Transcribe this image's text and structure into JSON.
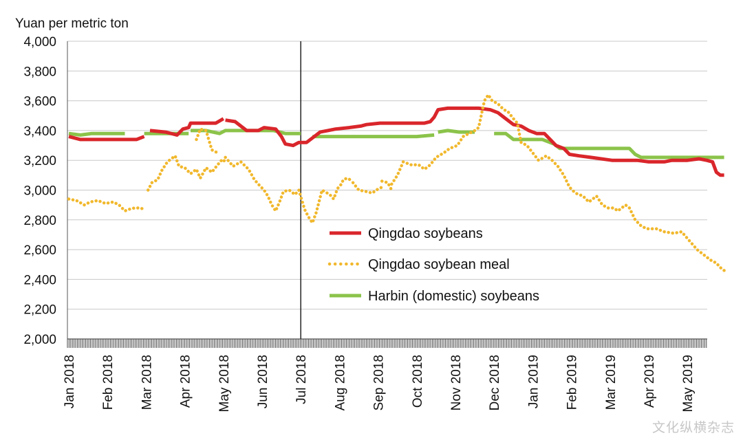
{
  "chart_data": {
    "type": "line",
    "title": "",
    "ylabel": "Yuan per metric ton",
    "xlabel": "",
    "ylim": [
      2000,
      4000
    ],
    "yticks": [
      2000,
      2200,
      2400,
      2600,
      2800,
      3000,
      3200,
      3400,
      3600,
      3800,
      4000
    ],
    "ytick_labels": [
      "2,000",
      "2,200",
      "2,400",
      "2,600",
      "2,800",
      "3,000",
      "3,200",
      "3,400",
      "3,600",
      "3,800",
      "4,000"
    ],
    "x_unit": "months since Jan 2018",
    "xlim": [
      0,
      16.95
    ],
    "month_labels": [
      "Jan 2018",
      "Feb 2018",
      "Mar 2018",
      "Apr 2018",
      "May 2018",
      "Jun 2018",
      "Jul 2018",
      "Aug 2018",
      "Sep 2018",
      "Oct 2018",
      "Nov 2018",
      "Dec 2018",
      "Jan 2019",
      "Feb 2019",
      "Mar 2019",
      "Apr 2019",
      "May 2019"
    ],
    "vertical_line_at": 6,
    "grid": true,
    "legend_position": "center-right",
    "series": [
      {
        "name": "Qingdao soybeans",
        "color": "#d9262b",
        "style": "solid",
        "gaps_after_index": [
          5,
          14
        ],
        "points": [
          [
            0.0,
            3360
          ],
          [
            0.3,
            3340
          ],
          [
            1.0,
            3340
          ],
          [
            1.45,
            3340
          ],
          [
            1.75,
            3340
          ],
          [
            1.95,
            3360
          ],
          [
            2.1,
            3400
          ],
          [
            2.5,
            3390
          ],
          [
            2.8,
            3370
          ],
          [
            2.95,
            3410
          ],
          [
            3.1,
            3420
          ],
          [
            3.15,
            3450
          ],
          [
            3.5,
            3450
          ],
          [
            3.8,
            3450
          ],
          [
            4.0,
            3480
          ],
          [
            4.05,
            3470
          ],
          [
            4.3,
            3460
          ],
          [
            4.45,
            3430
          ],
          [
            4.6,
            3400
          ],
          [
            4.9,
            3400
          ],
          [
            5.05,
            3420
          ],
          [
            5.35,
            3410
          ],
          [
            5.5,
            3360
          ],
          [
            5.6,
            3310
          ],
          [
            5.8,
            3300
          ],
          [
            5.95,
            3320
          ],
          [
            6.15,
            3320
          ],
          [
            6.3,
            3350
          ],
          [
            6.5,
            3390
          ],
          [
            6.7,
            3400
          ],
          [
            6.9,
            3410
          ],
          [
            7.25,
            3420
          ],
          [
            7.55,
            3430
          ],
          [
            7.7,
            3440
          ],
          [
            8.05,
            3450
          ],
          [
            8.4,
            3450
          ],
          [
            8.7,
            3450
          ],
          [
            9.0,
            3450
          ],
          [
            9.2,
            3450
          ],
          [
            9.35,
            3460
          ],
          [
            9.45,
            3490
          ],
          [
            9.55,
            3540
          ],
          [
            9.8,
            3550
          ],
          [
            10.2,
            3550
          ],
          [
            10.6,
            3550
          ],
          [
            10.9,
            3540
          ],
          [
            11.1,
            3520
          ],
          [
            11.3,
            3480
          ],
          [
            11.5,
            3440
          ],
          [
            11.7,
            3430
          ],
          [
            11.9,
            3400
          ],
          [
            12.1,
            3380
          ],
          [
            12.3,
            3380
          ],
          [
            12.45,
            3340
          ],
          [
            12.6,
            3300
          ],
          [
            12.8,
            3280
          ],
          [
            12.95,
            3240
          ],
          [
            13.2,
            3230
          ],
          [
            13.5,
            3220
          ],
          [
            14.05,
            3200
          ],
          [
            14.4,
            3200
          ],
          [
            14.7,
            3200
          ],
          [
            15.0,
            3190
          ],
          [
            15.4,
            3190
          ],
          [
            15.6,
            3200
          ],
          [
            16.0,
            3200
          ],
          [
            16.3,
            3210
          ],
          [
            16.5,
            3200
          ],
          [
            16.65,
            3190
          ],
          [
            16.75,
            3120
          ],
          [
            16.85,
            3100
          ],
          [
            16.95,
            3100
          ]
        ]
      },
      {
        "name": "Qingdao soybean meal",
        "color": "#f1b82d",
        "style": "dotted",
        "gaps_after_index": [
          12,
          29,
          34,
          61,
          67,
          70
        ],
        "points": [
          [
            0.0,
            2940
          ],
          [
            0.2,
            2930
          ],
          [
            0.4,
            2900
          ],
          [
            0.55,
            2920
          ],
          [
            0.75,
            2930
          ],
          [
            0.95,
            2910
          ],
          [
            1.15,
            2920
          ],
          [
            1.3,
            2900
          ],
          [
            1.45,
            2860
          ],
          [
            1.55,
            2870
          ],
          [
            1.7,
            2880
          ],
          [
            1.85,
            2880
          ],
          [
            1.95,
            2870
          ],
          [
            2.05,
            3000
          ],
          [
            2.15,
            3050
          ],
          [
            2.3,
            3070
          ],
          [
            2.4,
            3130
          ],
          [
            2.55,
            3190
          ],
          [
            2.75,
            3230
          ],
          [
            2.85,
            3160
          ],
          [
            3.0,
            3150
          ],
          [
            3.15,
            3110
          ],
          [
            3.3,
            3140
          ],
          [
            3.4,
            3080
          ],
          [
            3.55,
            3150
          ],
          [
            3.7,
            3120
          ],
          [
            3.85,
            3170
          ],
          [
            3.95,
            3200
          ],
          [
            4.0,
            3190
          ],
          [
            4.05,
            3210
          ],
          [
            3.3,
            3340
          ],
          [
            3.4,
            3410
          ],
          [
            3.55,
            3400
          ],
          [
            3.7,
            3270
          ],
          [
            3.85,
            3250
          ],
          [
            4.05,
            3220
          ],
          [
            4.25,
            3160
          ],
          [
            4.45,
            3190
          ],
          [
            4.65,
            3140
          ],
          [
            4.8,
            3070
          ],
          [
            4.9,
            3040
          ],
          [
            5.05,
            3000
          ],
          [
            5.15,
            2960
          ],
          [
            5.25,
            2900
          ],
          [
            5.35,
            2860
          ],
          [
            5.45,
            2920
          ],
          [
            5.55,
            2990
          ],
          [
            5.7,
            3000
          ],
          [
            5.85,
            2970
          ],
          [
            5.95,
            3000
          ],
          [
            6.1,
            2870
          ],
          [
            6.2,
            2820
          ],
          [
            6.3,
            2780
          ],
          [
            6.4,
            2850
          ],
          [
            6.55,
            3000
          ],
          [
            6.75,
            2970
          ],
          [
            6.85,
            2940
          ],
          [
            6.95,
            3010
          ],
          [
            7.05,
            3040
          ],
          [
            7.1,
            3070
          ],
          [
            7.2,
            3080
          ],
          [
            7.35,
            3060
          ],
          [
            7.35,
            3050
          ],
          [
            7.5,
            3000
          ],
          [
            7.7,
            2990
          ],
          [
            7.85,
            2980
          ],
          [
            7.95,
            3000
          ],
          [
            8.1,
            3020
          ],
          [
            8.1,
            3060
          ],
          [
            8.25,
            3050
          ],
          [
            8.35,
            3000
          ],
          [
            8.35,
            3040
          ],
          [
            8.5,
            3100
          ],
          [
            8.65,
            3190
          ],
          [
            8.85,
            3170
          ],
          [
            9.05,
            3170
          ],
          [
            9.2,
            3140
          ],
          [
            9.35,
            3170
          ],
          [
            9.5,
            3220
          ],
          [
            9.7,
            3250
          ],
          [
            9.85,
            3280
          ],
          [
            10.05,
            3300
          ],
          [
            10.2,
            3360
          ],
          [
            10.35,
            3380
          ],
          [
            10.5,
            3400
          ],
          [
            10.6,
            3420
          ],
          [
            10.75,
            3600
          ],
          [
            10.85,
            3640
          ],
          [
            10.95,
            3600
          ],
          [
            11.1,
            3580
          ],
          [
            11.25,
            3540
          ],
          [
            11.35,
            3530
          ],
          [
            11.5,
            3480
          ],
          [
            11.6,
            3450
          ],
          [
            11.7,
            3320
          ],
          [
            11.85,
            3300
          ],
          [
            12.0,
            3250
          ],
          [
            12.15,
            3200
          ],
          [
            12.35,
            3230
          ],
          [
            12.5,
            3200
          ],
          [
            12.65,
            3160
          ],
          [
            12.8,
            3100
          ],
          [
            12.95,
            3020
          ],
          [
            13.1,
            2980
          ],
          [
            13.3,
            2960
          ],
          [
            13.45,
            2920
          ],
          [
            13.65,
            2960
          ],
          [
            13.8,
            2900
          ],
          [
            13.95,
            2880
          ],
          [
            14.1,
            2880
          ],
          [
            14.2,
            2860
          ],
          [
            14.3,
            2880
          ],
          [
            14.4,
            2900
          ],
          [
            14.5,
            2880
          ],
          [
            14.65,
            2800
          ],
          [
            14.8,
            2760
          ],
          [
            14.95,
            2740
          ],
          [
            15.2,
            2740
          ],
          [
            15.4,
            2720
          ],
          [
            15.65,
            2710
          ],
          [
            15.85,
            2720
          ],
          [
            16.05,
            2660
          ],
          [
            16.25,
            2600
          ],
          [
            16.45,
            2560
          ],
          [
            16.6,
            2530
          ],
          [
            16.75,
            2510
          ],
          [
            16.85,
            2480
          ],
          [
            16.95,
            2460
          ]
        ]
      },
      {
        "name": "Harbin (domestic) soybeans",
        "color": "#8bc34a",
        "style": "solid",
        "gaps_after_index": [
          4,
          6,
          18,
          24,
          28
        ],
        "points": [
          [
            0.0,
            3380
          ],
          [
            0.3,
            3370
          ],
          [
            0.6,
            3380
          ],
          [
            1.0,
            3380
          ],
          [
            1.45,
            3380
          ],
          [
            1.95,
            3380
          ],
          [
            3.1,
            3380
          ],
          [
            3.15,
            3400
          ],
          [
            3.55,
            3400
          ],
          [
            3.9,
            3380
          ],
          [
            4.05,
            3400
          ],
          [
            4.4,
            3400
          ],
          [
            4.7,
            3400
          ],
          [
            5.0,
            3400
          ],
          [
            5.3,
            3400
          ],
          [
            5.45,
            3390
          ],
          [
            5.6,
            3380
          ],
          [
            5.8,
            3380
          ],
          [
            6.0,
            3380
          ],
          [
            6.3,
            3360
          ],
          [
            7.0,
            3360
          ],
          [
            7.7,
            3360
          ],
          [
            8.4,
            3360
          ],
          [
            9.0,
            3360
          ],
          [
            9.45,
            3370
          ],
          [
            9.55,
            3390
          ],
          [
            9.8,
            3400
          ],
          [
            10.1,
            3390
          ],
          [
            10.5,
            3390
          ],
          [
            11.0,
            3380
          ],
          [
            11.3,
            3380
          ],
          [
            11.5,
            3340
          ],
          [
            11.9,
            3340
          ],
          [
            12.25,
            3340
          ],
          [
            12.55,
            3310
          ],
          [
            12.7,
            3280
          ],
          [
            13.0,
            3280
          ],
          [
            13.3,
            3280
          ],
          [
            13.8,
            3280
          ],
          [
            14.05,
            3280
          ],
          [
            14.4,
            3280
          ],
          [
            14.5,
            3280
          ],
          [
            14.65,
            3240
          ],
          [
            14.8,
            3220
          ],
          [
            15.2,
            3220
          ],
          [
            15.5,
            3220
          ],
          [
            15.75,
            3220
          ],
          [
            16.0,
            3220
          ],
          [
            16.3,
            3220
          ],
          [
            16.55,
            3220
          ],
          [
            16.75,
            3220
          ],
          [
            16.95,
            3220
          ]
        ]
      }
    ]
  },
  "watermark": "文化纵横杂志"
}
